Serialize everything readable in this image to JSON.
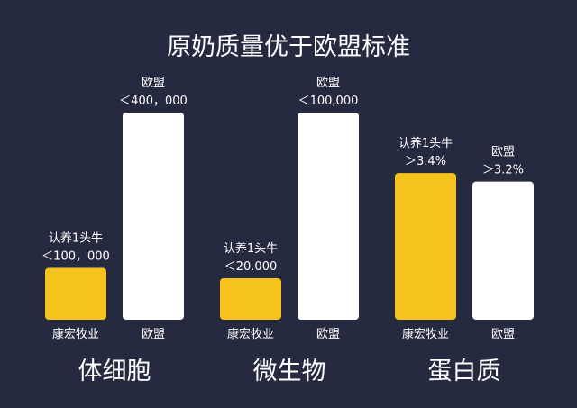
{
  "title": "原奶质量优于欧盟标准",
  "colors": {
    "background": "#252a40",
    "highlight": "#f6c21d",
    "standard": "#ffffff",
    "text": "#ffffff"
  },
  "chart_data": [
    {
      "type": "bar",
      "group": "体细胞",
      "categories": [
        "康宏牧业",
        "欧盟"
      ],
      "values": [
        100000,
        400000
      ],
      "annotations": [
        [
          "认养1头牛",
          "＜100，000"
        ],
        [
          "欧盟",
          "＜400，000"
        ]
      ],
      "colors": [
        "#f6c21d",
        "#ffffff"
      ],
      "ylim": [
        0,
        400000
      ]
    },
    {
      "type": "bar",
      "group": "微生物",
      "categories": [
        "康宏牧业",
        "欧盟"
      ],
      "values": [
        20000,
        100000
      ],
      "annotations": [
        [
          "认养1头牛",
          "＜20.000"
        ],
        [
          "欧盟",
          "＜100,000"
        ]
      ],
      "colors": [
        "#f6c21d",
        "#ffffff"
      ],
      "ylim": [
        0,
        100000
      ]
    },
    {
      "type": "bar",
      "group": "蛋白质",
      "categories": [
        "康宏牧业",
        "欧盟"
      ],
      "values": [
        3.4,
        3.2
      ],
      "annotations": [
        [
          "认养1头牛",
          "＞3.4%"
        ],
        [
          "欧盟",
          "＞3.2%"
        ]
      ],
      "colors": [
        "#f6c21d",
        "#ffffff"
      ],
      "ylim": [
        0,
        4.8
      ]
    }
  ]
}
